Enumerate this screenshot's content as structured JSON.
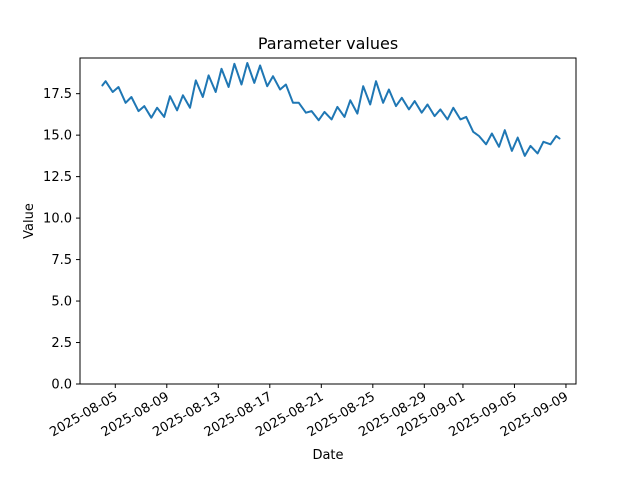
{
  "chart_data": {
    "type": "line",
    "title": "Parameter values",
    "xlabel": "Date",
    "ylabel": "Value",
    "line_color": "#1f77b4",
    "background_color": "#ffffff",
    "spine_color": "#000000",
    "grid": false,
    "legend": false,
    "x_unit": "days since 2025-08-04",
    "xlim": [
      -1.74,
      36.78
    ],
    "ylim": [
      0,
      19.65
    ],
    "y_ticks": [
      {
        "v": 0.0,
        "label": "0.0"
      },
      {
        "v": 2.5,
        "label": "2.5"
      },
      {
        "v": 5.0,
        "label": "5.0"
      },
      {
        "v": 7.5,
        "label": "7.5"
      },
      {
        "v": 10.0,
        "label": "10.0"
      },
      {
        "v": 12.5,
        "label": "12.5"
      },
      {
        "v": 15.0,
        "label": "15.0"
      },
      {
        "v": 17.5,
        "label": "17.5"
      }
    ],
    "x_ticks": [
      {
        "t": 1,
        "label": "2025-08-05"
      },
      {
        "t": 5,
        "label": "2025-08-09"
      },
      {
        "t": 9,
        "label": "2025-08-13"
      },
      {
        "t": 13,
        "label": "2025-08-17"
      },
      {
        "t": 17,
        "label": "2025-08-21"
      },
      {
        "t": 21,
        "label": "2025-08-25"
      },
      {
        "t": 25,
        "label": "2025-08-29"
      },
      {
        "t": 28,
        "label": "2025-09-01"
      },
      {
        "t": 32,
        "label": "2025-09-05"
      },
      {
        "t": 36,
        "label": "2025-09-09"
      }
    ],
    "series": [
      {
        "name": "Parameter values",
        "date_range": [
          "2025-08-04",
          "2025-09-08"
        ],
        "points": [
          [
            0,
            18.0
          ],
          [
            0.25,
            18.25
          ],
          [
            0.8,
            17.6
          ],
          [
            1.25,
            17.9
          ],
          [
            1.8,
            16.95
          ],
          [
            2.25,
            17.3
          ],
          [
            2.8,
            16.45
          ],
          [
            3.25,
            16.75
          ],
          [
            3.8,
            16.05
          ],
          [
            4.25,
            16.65
          ],
          [
            4.8,
            16.1
          ],
          [
            5.25,
            17.35
          ],
          [
            5.8,
            16.5
          ],
          [
            6.25,
            17.4
          ],
          [
            6.8,
            16.65
          ],
          [
            7.25,
            18.3
          ],
          [
            7.8,
            17.3
          ],
          [
            8.25,
            18.6
          ],
          [
            8.8,
            17.6
          ],
          [
            9.25,
            19.0
          ],
          [
            9.8,
            17.9
          ],
          [
            10.25,
            19.3
          ],
          [
            10.8,
            18.05
          ],
          [
            11.25,
            19.35
          ],
          [
            11.8,
            18.15
          ],
          [
            12.25,
            19.2
          ],
          [
            12.8,
            17.95
          ],
          [
            13.25,
            18.55
          ],
          [
            13.8,
            17.75
          ],
          [
            14.25,
            18.05
          ],
          [
            14.8,
            16.95
          ],
          [
            15.25,
            16.95
          ],
          [
            15.8,
            16.35
          ],
          [
            16.25,
            16.45
          ],
          [
            16.8,
            15.9
          ],
          [
            17.25,
            16.4
          ],
          [
            17.8,
            15.95
          ],
          [
            18.25,
            16.7
          ],
          [
            18.8,
            16.1
          ],
          [
            19.25,
            17.1
          ],
          [
            19.8,
            16.3
          ],
          [
            20.25,
            17.95
          ],
          [
            20.8,
            16.85
          ],
          [
            21.25,
            18.25
          ],
          [
            21.8,
            16.95
          ],
          [
            22.25,
            17.75
          ],
          [
            22.8,
            16.75
          ],
          [
            23.25,
            17.25
          ],
          [
            23.8,
            16.55
          ],
          [
            24.25,
            17.05
          ],
          [
            24.8,
            16.35
          ],
          [
            25.25,
            16.85
          ],
          [
            25.8,
            16.15
          ],
          [
            26.25,
            16.55
          ],
          [
            26.8,
            15.95
          ],
          [
            27.25,
            16.65
          ],
          [
            27.8,
            15.95
          ],
          [
            28.25,
            16.1
          ],
          [
            28.8,
            15.2
          ],
          [
            29.25,
            14.95
          ],
          [
            29.8,
            14.45
          ],
          [
            30.25,
            15.1
          ],
          [
            30.8,
            14.3
          ],
          [
            31.25,
            15.3
          ],
          [
            31.8,
            14.05
          ],
          [
            32.25,
            14.85
          ],
          [
            32.8,
            13.75
          ],
          [
            33.25,
            14.35
          ],
          [
            33.8,
            13.9
          ],
          [
            34.25,
            14.6
          ],
          [
            34.8,
            14.45
          ],
          [
            35.25,
            14.95
          ],
          [
            35.5,
            14.8
          ]
        ]
      }
    ]
  }
}
